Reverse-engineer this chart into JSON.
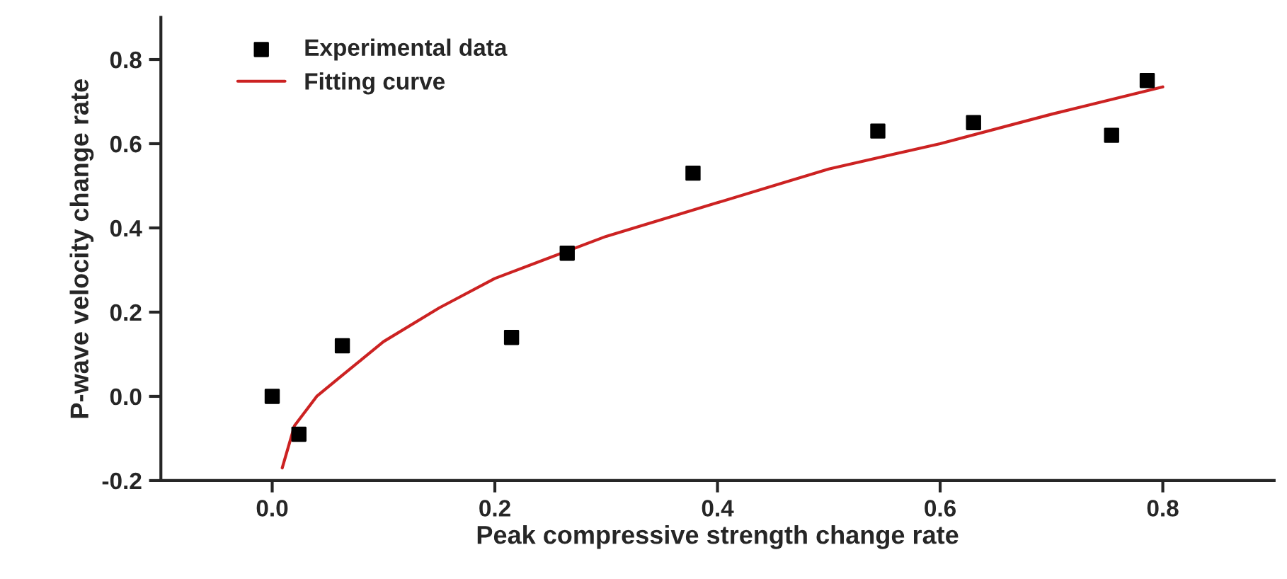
{
  "chart_data": {
    "type": "scatter",
    "xlabel": "Peak compressive strength change rate",
    "ylabel": "P-wave velocity change rate",
    "series": [
      {
        "name": "Experimental data",
        "color": "#000000",
        "marker": "square",
        "x": [
          0.0,
          0.024,
          0.063,
          0.215,
          0.265,
          0.378,
          0.544,
          0.63,
          0.754,
          0.786
        ],
        "values": [
          0.0,
          -0.09,
          0.12,
          0.14,
          0.34,
          0.53,
          0.63,
          0.65,
          0.62,
          0.75
        ]
      },
      {
        "name": "Fitting curve",
        "type": "line",
        "color": "#cc2222",
        "marker": "none",
        "x": [
          0.009,
          0.02,
          0.04,
          0.063,
          0.1,
          0.15,
          0.2,
          0.3,
          0.4,
          0.5,
          0.6,
          0.7,
          0.8
        ],
        "values": [
          -0.17,
          -0.07,
          0.0,
          0.05,
          0.13,
          0.21,
          0.28,
          0.38,
          0.46,
          0.54,
          0.6,
          0.67,
          0.735
        ]
      }
    ],
    "xlim": [
      -0.1,
      0.9
    ],
    "ylim": [
      -0.2,
      0.9
    ],
    "xticks": [
      {
        "value": 0.0,
        "label": "0.0"
      },
      0.2,
      0.4,
      0.6,
      0.8
    ],
    "yticks": [
      -0.2,
      {
        "value": 0.0,
        "label": "0.0"
      },
      0.2,
      0.4,
      0.6,
      0.8
    ],
    "grid": false,
    "legend": "top left"
  }
}
